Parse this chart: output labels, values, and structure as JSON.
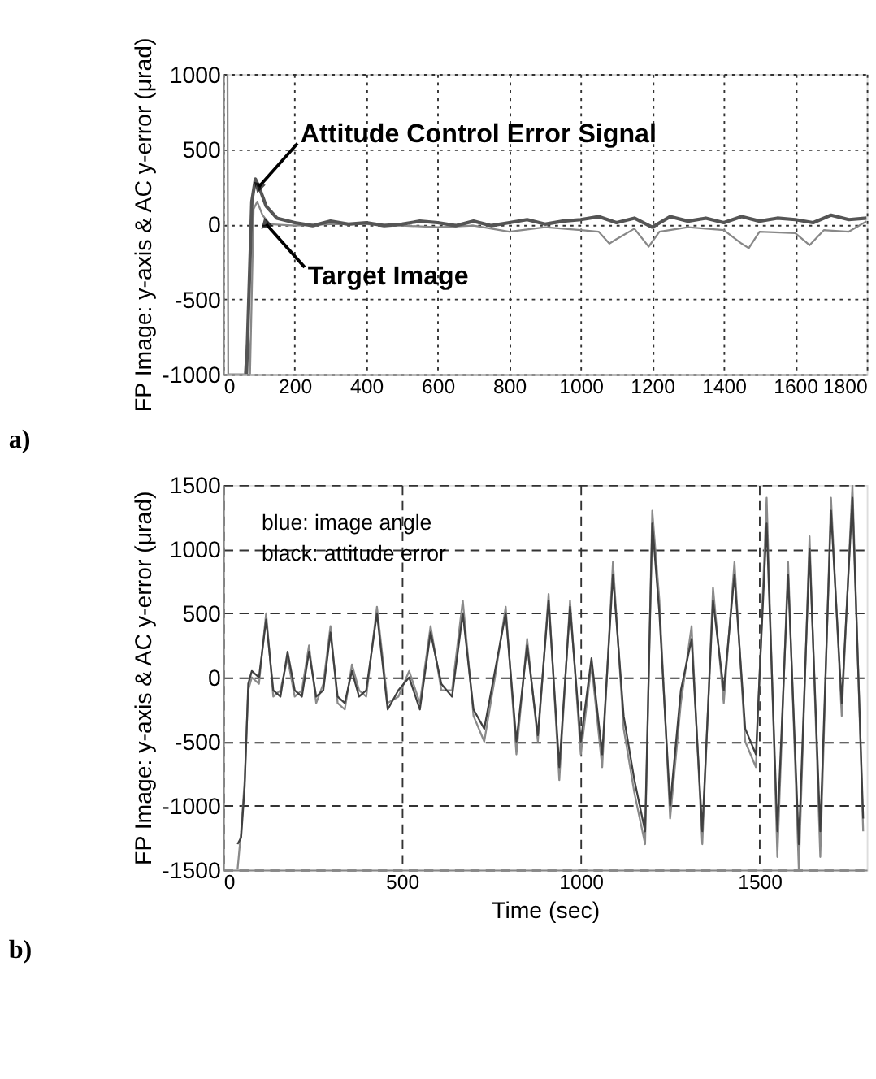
{
  "chart_data": [
    {
      "type": "line",
      "title": "a)",
      "ylabel": "FP Image: y-axis & AC y-error (μrad)",
      "xlim": [
        0,
        1800
      ],
      "xticks": [
        0,
        200,
        400,
        600,
        800,
        1000,
        1200,
        1400,
        1600,
        1800
      ],
      "ylim": [
        -1000,
        1000
      ],
      "yticks": [
        -1000,
        -500,
        0,
        500,
        1000
      ],
      "grid": true,
      "annotations": [
        {
          "text": "Attitude Control Error Signal",
          "x": 100,
          "y": 250
        },
        {
          "text": "Target Image",
          "x": 120,
          "y": 0
        }
      ],
      "series": [
        {
          "color": "#888888",
          "x": [
            12,
            14,
            60,
            70,
            75,
            85,
            95,
            110,
            130,
            200,
            300,
            400,
            500,
            600,
            700,
            800,
            900,
            1000,
            1050,
            1080,
            1100,
            1150,
            1190,
            1220,
            1300,
            1400,
            1450,
            1470,
            1500,
            1600,
            1640,
            1680,
            1750,
            1800
          ],
          "values": [
            1000,
            -1000,
            -1000,
            -700,
            -1000,
            100,
            150,
            60,
            0,
            -10,
            0,
            0,
            -10,
            -20,
            -10,
            -50,
            -20,
            -40,
            -50,
            -130,
            -100,
            -30,
            -150,
            -50,
            -20,
            -40,
            -130,
            -160,
            -50,
            -60,
            -140,
            -40,
            -50,
            20
          ]
        },
        {
          "color": "#555555",
          "x": [
            65,
            80,
            90,
            100,
            120,
            150,
            200,
            250,
            300,
            350,
            400,
            450,
            500,
            550,
            600,
            650,
            700,
            750,
            800,
            850,
            900,
            950,
            1000,
            1050,
            1100,
            1150,
            1200,
            1250,
            1300,
            1350,
            1400,
            1450,
            1500,
            1550,
            1600,
            1650,
            1700,
            1750,
            1800
          ],
          "values": [
            -1000,
            150,
            300,
            250,
            120,
            40,
            10,
            -10,
            20,
            0,
            10,
            -10,
            0,
            20,
            10,
            -10,
            20,
            -10,
            10,
            30,
            0,
            20,
            30,
            50,
            10,
            40,
            -20,
            50,
            20,
            40,
            10,
            50,
            20,
            40,
            30,
            10,
            60,
            30,
            40
          ]
        }
      ]
    },
    {
      "type": "line",
      "title": "b)",
      "xlabel": "Time (sec)",
      "ylabel": "FP Image: y-axis & AC y-error (μrad)",
      "xlim": [
        0,
        1800
      ],
      "xticks": [
        0,
        500,
        1000,
        1500
      ],
      "ylim": [
        -1500,
        1500
      ],
      "yticks": [
        -1500,
        -1000,
        -500,
        0,
        500,
        1000,
        1500
      ],
      "grid": true,
      "annotations": [
        "blue: image angle",
        "black: attitude error"
      ],
      "series": [
        {
          "color": "#8a8a8a",
          "x": [
            40,
            50,
            60,
            70,
            80,
            100,
            120,
            140,
            160,
            180,
            200,
            220,
            240,
            260,
            280,
            300,
            320,
            340,
            360,
            380,
            400,
            430,
            460,
            490,
            520,
            550,
            580,
            610,
            640,
            670,
            700,
            730,
            760,
            790,
            820,
            850,
            880,
            910,
            940,
            970,
            1000,
            1030,
            1060,
            1090,
            1120,
            1150,
            1180,
            1200,
            1220,
            1250,
            1280,
            1310,
            1340,
            1370,
            1400,
            1430,
            1460,
            1490,
            1520,
            1550,
            1580,
            1610,
            1640,
            1670,
            1700,
            1730,
            1760,
            1790
          ],
          "values": [
            -1500,
            -1200,
            -800,
            -100,
            0,
            -50,
            500,
            -150,
            -100,
            150,
            -150,
            -100,
            250,
            -200,
            -50,
            400,
            -200,
            -250,
            100,
            -100,
            -150,
            550,
            -200,
            -150,
            50,
            -200,
            400,
            -100,
            -100,
            600,
            -300,
            -500,
            0,
            550,
            -600,
            300,
            -500,
            650,
            -800,
            600,
            -600,
            100,
            -700,
            900,
            -400,
            -900,
            -1300,
            1300,
            600,
            -1100,
            -200,
            400,
            -1300,
            700,
            -200,
            900,
            -500,
            -700,
            1400,
            -1400,
            900,
            -1500,
            1100,
            -1400,
            1400,
            -300,
            1500,
            -1200
          ]
        },
        {
          "color": "#404040",
          "x": [
            40,
            50,
            60,
            70,
            80,
            100,
            120,
            140,
            160,
            180,
            200,
            220,
            240,
            260,
            280,
            300,
            320,
            340,
            360,
            380,
            400,
            430,
            460,
            490,
            520,
            550,
            580,
            610,
            640,
            670,
            700,
            730,
            760,
            790,
            820,
            850,
            880,
            910,
            940,
            970,
            1000,
            1030,
            1060,
            1090,
            1120,
            1150,
            1180,
            1200,
            1220,
            1250,
            1280,
            1310,
            1340,
            1370,
            1400,
            1430,
            1460,
            1490,
            1520,
            1550,
            1580,
            1610,
            1640,
            1670,
            1700,
            1730,
            1760,
            1790
          ],
          "values": [
            -1300,
            -1250,
            -850,
            -50,
            50,
            0,
            450,
            -100,
            -150,
            200,
            -100,
            -150,
            200,
            -150,
            -100,
            350,
            -150,
            -200,
            50,
            -150,
            -100,
            500,
            -250,
            -100,
            0,
            -250,
            350,
            -50,
            -150,
            500,
            -250,
            -400,
            50,
            500,
            -500,
            250,
            -450,
            600,
            -700,
            550,
            -500,
            150,
            -600,
            800,
            -300,
            -800,
            -1200,
            1200,
            500,
            -1000,
            -100,
            300,
            -1200,
            600,
            -100,
            800,
            -400,
            -600,
            1200,
            -1200,
            800,
            -1300,
            1000,
            -1200,
            1300,
            -200,
            1400,
            -1100
          ]
        }
      ]
    }
  ]
}
